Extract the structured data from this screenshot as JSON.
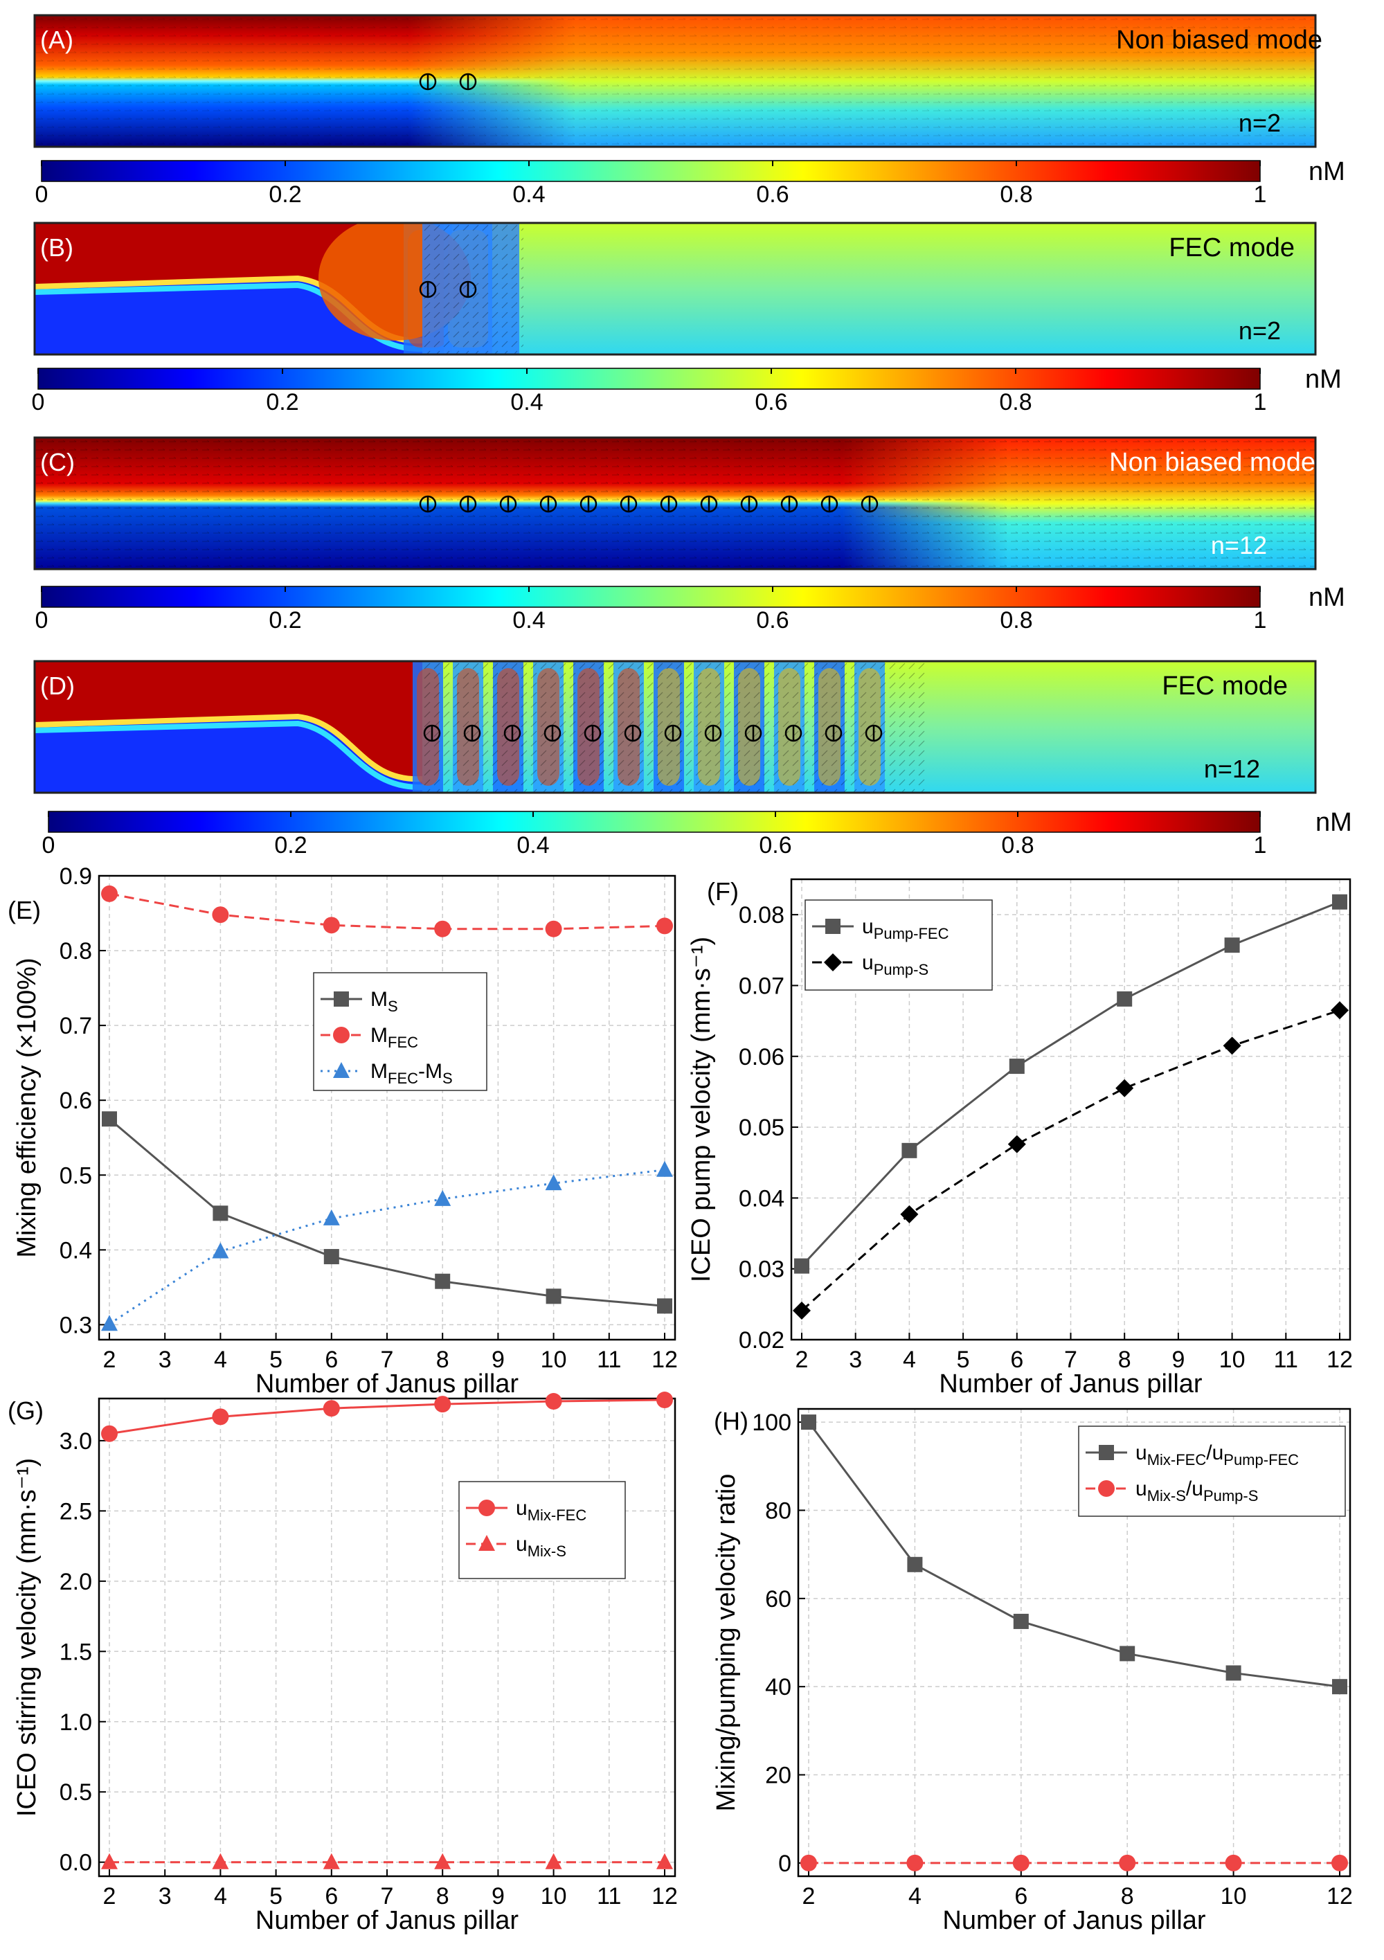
{
  "colormap": [
    "#00007f",
    "#0000ff",
    "#007fff",
    "#00ffff",
    "#7fff7f",
    "#ffff00",
    "#ff7f00",
    "#ff0000",
    "#7f0000"
  ],
  "panels": [
    {
      "label": "(A)",
      "mode": "Non biased mode",
      "n_label": "n=2",
      "pillars": 2,
      "style": "nonbiased"
    },
    {
      "label": "(B)",
      "mode": "FEC mode",
      "n_label": "n=2",
      "pillars": 2,
      "style": "fec"
    },
    {
      "label": "(C)",
      "mode": "Non biased mode",
      "n_label": "n=12",
      "pillars": 12,
      "style": "nonbiased"
    },
    {
      "label": "(D)",
      "mode": "FEC mode",
      "n_label": "n=12",
      "pillars": 12,
      "style": "fec"
    }
  ],
  "colorbars": [
    {
      "unit": "nM",
      "ticks": [
        "0",
        "0.2",
        "0.4",
        "0.6",
        "0.8",
        "1"
      ]
    },
    {
      "unit": "nM",
      "ticks": [
        "0",
        "0.2",
        "0.4",
        "0.6",
        "0.8",
        "1"
      ]
    },
    {
      "unit": "nM",
      "ticks": [
        "0",
        "0.2",
        "0.4",
        "0.6",
        "0.8",
        "1"
      ]
    },
    {
      "unit": "nM",
      "ticks": [
        "0",
        "0.2",
        "0.4",
        "0.6",
        "0.8",
        "1"
      ]
    }
  ],
  "chart_data": [
    {
      "id": "E",
      "label": "(E)",
      "type": "line",
      "xlabel": "Number of Janus pillar",
      "ylabel": "Mixing efficiency (×100%)",
      "xlim": [
        2,
        12
      ],
      "xticks": [
        2,
        3,
        4,
        5,
        6,
        7,
        8,
        9,
        10,
        11,
        12
      ],
      "ylim": [
        0.28,
        0.9
      ],
      "yticks": [
        0.3,
        0.4,
        0.5,
        0.6,
        0.7,
        0.8,
        0.9
      ],
      "ydec": 1,
      "grid": true,
      "legend": "center",
      "x": [
        2,
        4,
        6,
        8,
        10,
        12
      ],
      "series": [
        {
          "name": "M",
          "sub": "S",
          "values": [
            0.575,
            0.449,
            0.391,
            0.358,
            0.338,
            0.325
          ],
          "color": "#555555",
          "marker": "square",
          "dash": "solid"
        },
        {
          "name": "M",
          "sub": "FEC",
          "values": [
            0.876,
            0.848,
            0.834,
            0.829,
            0.829,
            0.833
          ],
          "color": "#ee4444",
          "marker": "circle",
          "dash": "dashed"
        },
        {
          "name": "M",
          "sub": "FEC",
          "name2": "-M",
          "sub2": "S",
          "values": [
            0.301,
            0.398,
            0.442,
            0.468,
            0.489,
            0.507
          ],
          "color": "#3b84d6",
          "marker": "triangle",
          "dash": "dotted"
        }
      ]
    },
    {
      "id": "F",
      "label": "(F)",
      "type": "line",
      "xlabel": "Number of Janus pillar",
      "ylabel": "ICEO pump velocity (mm·s⁻¹)",
      "xlim": [
        2,
        12
      ],
      "xticks": [
        2,
        3,
        4,
        5,
        6,
        7,
        8,
        9,
        10,
        11,
        12
      ],
      "ylim": [
        0.02,
        0.085
      ],
      "yticks": [
        0.02,
        0.03,
        0.04,
        0.05,
        0.06,
        0.07,
        0.08
      ],
      "ydec": 2,
      "grid": true,
      "legend": "top-left",
      "x": [
        2,
        4,
        6,
        8,
        10,
        12
      ],
      "series": [
        {
          "name": "u",
          "sub": "Pump-FEC",
          "values": [
            0.0304,
            0.0467,
            0.0586,
            0.0681,
            0.0757,
            0.0818
          ],
          "color": "#555555",
          "marker": "square",
          "dash": "solid"
        },
        {
          "name": "u",
          "sub": "Pump-S",
          "values": [
            0.0241,
            0.0377,
            0.0476,
            0.0555,
            0.0615,
            0.0665
          ],
          "color": "#000000",
          "marker": "diamond",
          "dash": "dashed"
        }
      ]
    },
    {
      "id": "G",
      "label": "(G)",
      "type": "line",
      "xlabel": "Number of Janus pillar",
      "ylabel": "ICEO stirring velocity (mm·s⁻¹)",
      "xlim": [
        2,
        12
      ],
      "xticks": [
        2,
        3,
        4,
        5,
        6,
        7,
        8,
        9,
        10,
        11,
        12
      ],
      "ylim": [
        -0.1,
        3.3
      ],
      "yticks": [
        0.0,
        0.5,
        1.0,
        1.5,
        2.0,
        2.5,
        3.0
      ],
      "ydec": 1,
      "grid": true,
      "legend": "top-right",
      "x": [
        2,
        4,
        6,
        8,
        10,
        12
      ],
      "series": [
        {
          "name": "u",
          "sub": "Mix-FEC",
          "values": [
            3.05,
            3.17,
            3.23,
            3.26,
            3.28,
            3.29
          ],
          "color": "#ee4444",
          "marker": "circle",
          "dash": "solid"
        },
        {
          "name": "u",
          "sub": "Mix-S",
          "values": [
            0.0,
            0.0,
            0.0,
            0.0,
            0.0,
            0.0
          ],
          "color": "#ee4444",
          "marker": "triangle",
          "dash": "dashed"
        }
      ]
    },
    {
      "id": "H",
      "label": "(H)",
      "type": "line",
      "xlabel": "Number of Janus pillar",
      "ylabel": "Mixing/pumping velocity ratio",
      "xlim": [
        2,
        12
      ],
      "xticks": [
        2,
        4,
        6,
        8,
        10,
        12
      ],
      "ylim": [
        -3,
        103
      ],
      "yticks": [
        0,
        20,
        40,
        60,
        80,
        100
      ],
      "ydec": 0,
      "grid": true,
      "legend": "top-right",
      "x": [
        2,
        4,
        6,
        8,
        10,
        12
      ],
      "series": [
        {
          "name": "u",
          "sub": "Mix-FEC",
          "name2": "/u",
          "sub2": "Pump-FEC",
          "values": [
            100.0,
            67.7,
            54.8,
            47.5,
            43.1,
            40.0
          ],
          "color": "#555555",
          "marker": "square",
          "dash": "solid"
        },
        {
          "name": "u",
          "sub": "Mix-S",
          "name2": "/u",
          "sub2": "Pump-S",
          "values": [
            0,
            0,
            0,
            0,
            0,
            0
          ],
          "color": "#ee4444",
          "marker": "circle",
          "dash": "dashed"
        }
      ]
    }
  ]
}
